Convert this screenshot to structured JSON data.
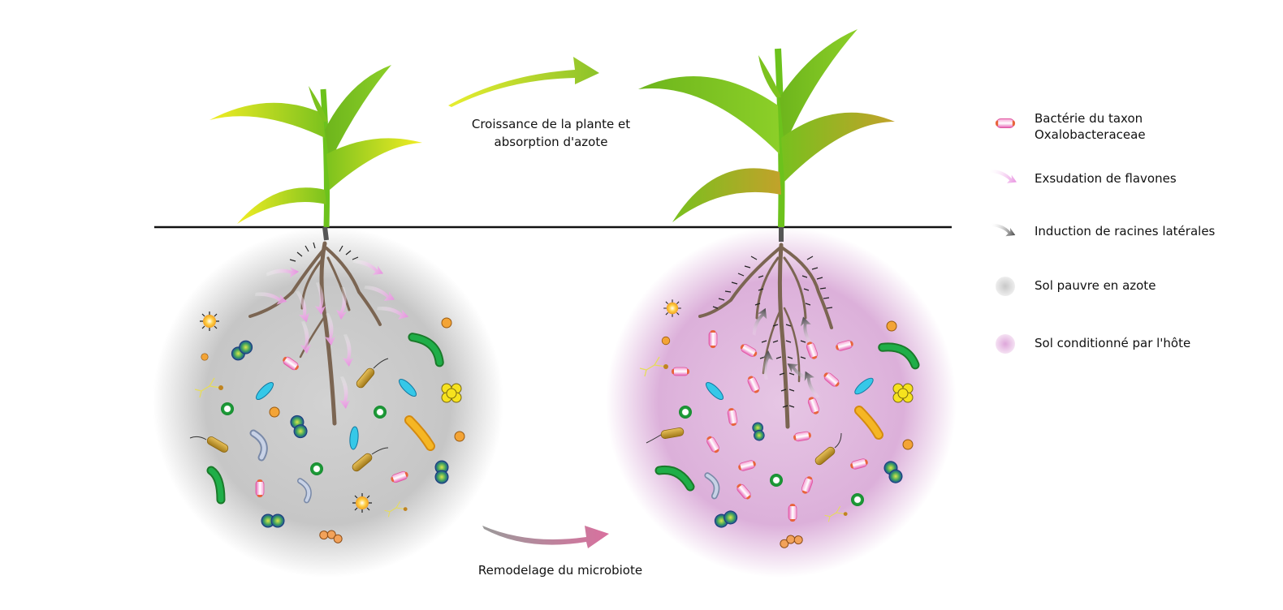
{
  "captions": {
    "top": "Croissance de la plante et absorption d'azote",
    "bottom": "Remodelage du microbiote"
  },
  "legend": [
    {
      "icon": "oxalobacteraceae-bacterium-icon",
      "label": "Bactérie du taxon\nOxalobacteraceae"
    },
    {
      "icon": "flavone-exudation-arrow-icon",
      "label": "Exsudation de flavones"
    },
    {
      "icon": "lateral-root-induction-arrow-icon",
      "label": "Induction de racines latérales"
    },
    {
      "icon": "poor-soil-icon",
      "label": "Sol pauvre en azote"
    },
    {
      "icon": "conditioned-soil-icon",
      "label": "Sol conditionné par l'hôte"
    }
  ],
  "colors": {
    "poor_soil": "#bdbdbd",
    "conditioned_soil": "#dba8d6",
    "flavone_arrow": "#e890e0",
    "lateral_arrow": "#555555",
    "bacterium_pink": "#f07cc0",
    "bacterium_cap": "#e8643c",
    "root": "#7b6552",
    "leaf_green": "#6dbb1e",
    "leaf_yellow": "#f3ee22",
    "growth_arrow": "#9cc82e",
    "remodel_arrow": "#c8729e"
  }
}
